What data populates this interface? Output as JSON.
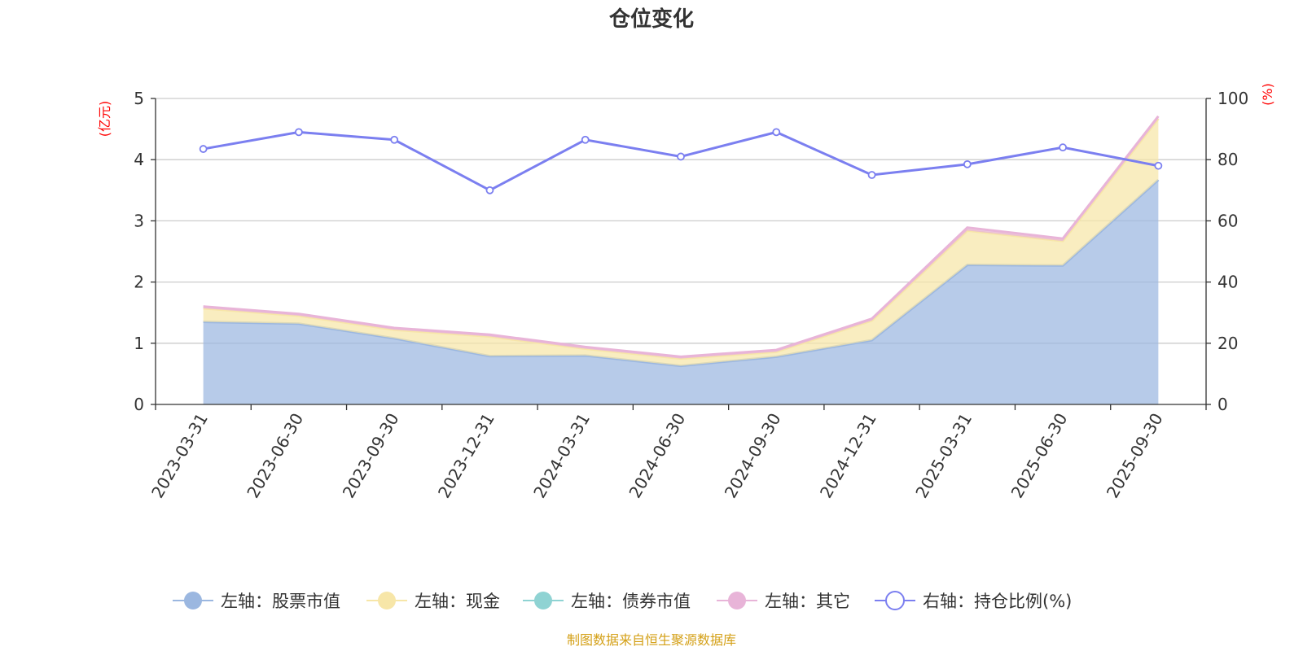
{
  "chart_data": {
    "type": "area",
    "title": "仓位变化",
    "left_unit": "(亿元)",
    "right_unit": "(%)",
    "categories": [
      "2023-03-31",
      "2023-06-30",
      "2023-09-30",
      "2023-12-31",
      "2024-03-31",
      "2024-06-30",
      "2024-09-30",
      "2024-12-31",
      "2025-03-31",
      "2025-06-30",
      "2025-09-30"
    ],
    "left_axis": {
      "min": 0,
      "max": 5,
      "ticks": [
        0,
        1,
        2,
        3,
        4,
        5
      ]
    },
    "right_axis": {
      "min": 0,
      "max": 100,
      "ticks": [
        0,
        20,
        40,
        60,
        80,
        100
      ]
    },
    "grid": true,
    "legend_position": "bottom",
    "series": [
      {
        "name": "左轴：股票市值",
        "axis": "left",
        "stack": true,
        "color": "#9bb7e0",
        "values": [
          1.35,
          1.32,
          1.08,
          0.79,
          0.8,
          0.63,
          0.78,
          1.05,
          2.28,
          2.27,
          3.67
        ]
      },
      {
        "name": "左轴：现金",
        "axis": "left",
        "stack": true,
        "color": "#f7e6a8",
        "values": [
          0.22,
          0.13,
          0.14,
          0.32,
          0.11,
          0.12,
          0.08,
          0.32,
          0.56,
          0.4,
          1.0
        ]
      },
      {
        "name": "左轴：债券市值",
        "axis": "left",
        "stack": true,
        "color": "#8fd3d3",
        "values": [
          0,
          0,
          0,
          0,
          0,
          0,
          0,
          0,
          0,
          0,
          0
        ]
      },
      {
        "name": "左轴：其它",
        "axis": "left",
        "stack": true,
        "color": "#e8b4d8",
        "values": [
          0.03,
          0.03,
          0.03,
          0.03,
          0.03,
          0.03,
          0.03,
          0.03,
          0.05,
          0.04,
          0.04
        ]
      },
      {
        "name": "右轴：持仓比例(%)",
        "axis": "right",
        "stack": false,
        "color": "#7b7ff0",
        "values": [
          83.5,
          89.0,
          86.5,
          70.0,
          86.5,
          81.0,
          89.0,
          75.0,
          78.5,
          84.0,
          78.0
        ]
      }
    ]
  },
  "source_note": "制图数据来自恒生聚源数据库"
}
